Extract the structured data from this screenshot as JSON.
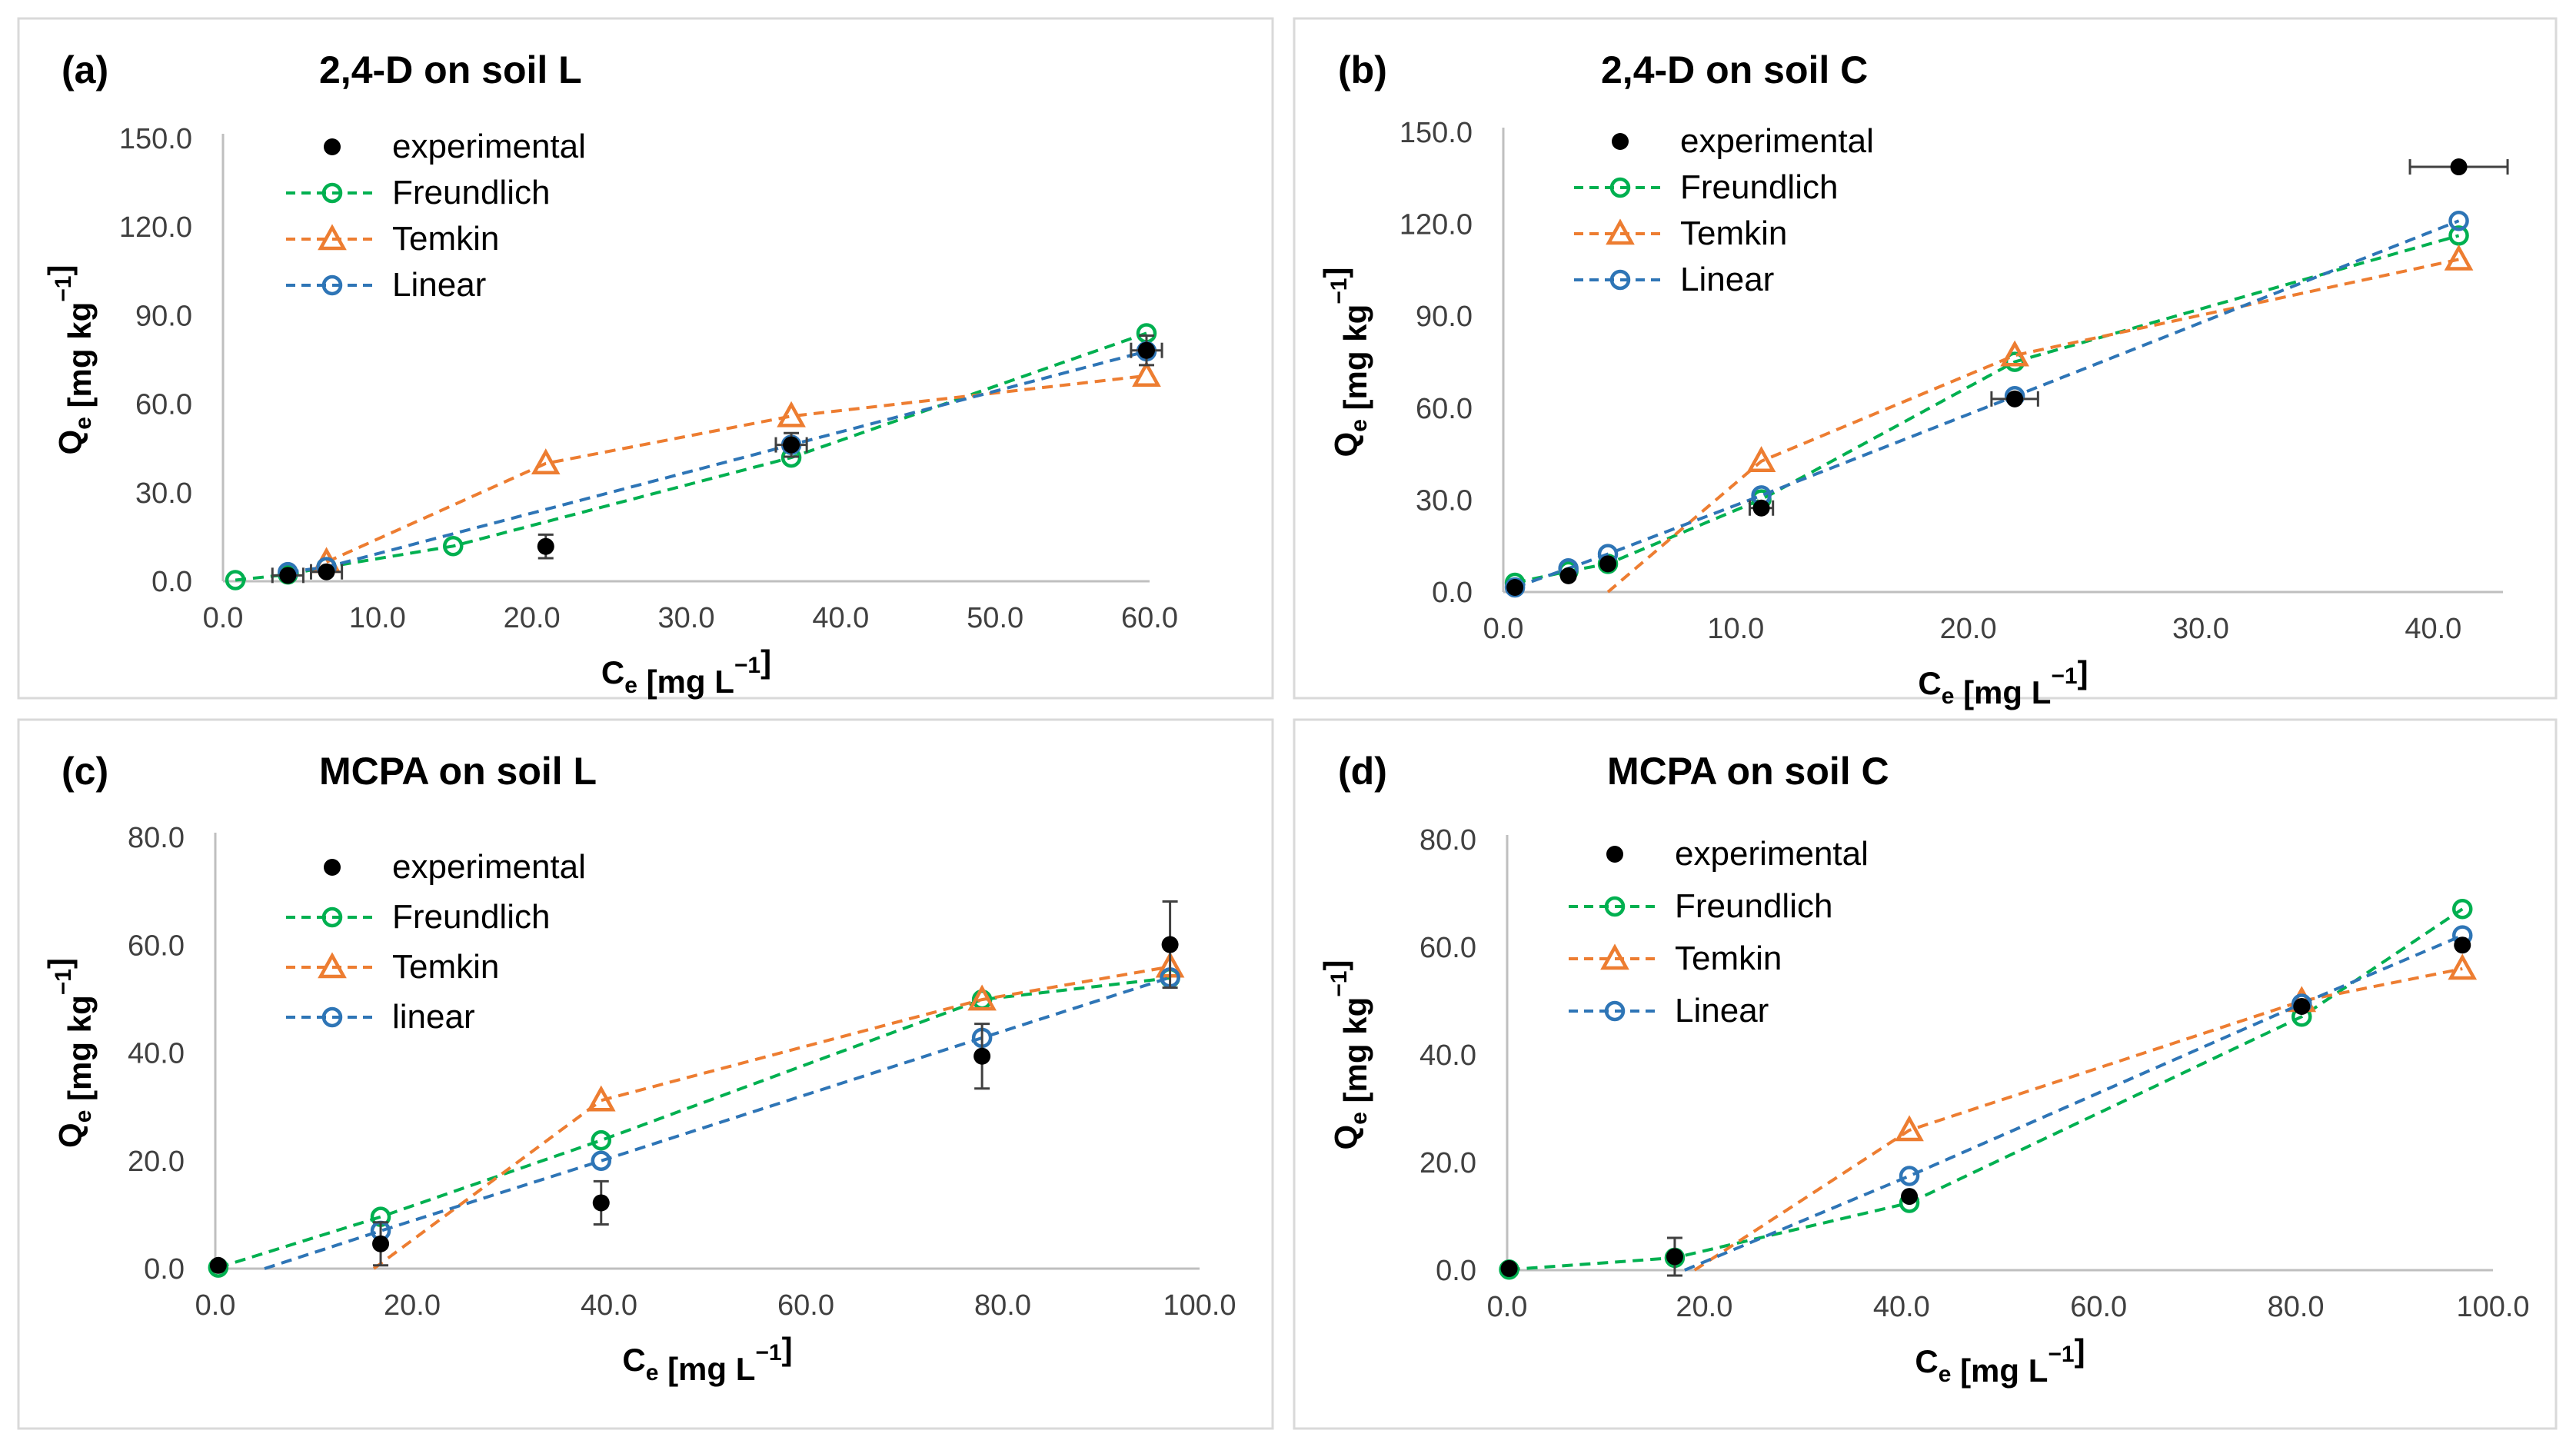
{
  "figure": {
    "panels": [
      {
        "letter": "(a)",
        "title": "2,4-D on soil L",
        "xlabel_main": "C",
        "xlabel_sub": "e",
        "xlabel_unit": " [mg L",
        "ylabel_main": "Q",
        "ylabel_sub": "e",
        "ylabel_unit": " [mg kg",
        "unit_exp": "−1",
        "legend": [
          "experimental",
          "Freundlich",
          "Temkin",
          "Linear"
        ]
      },
      {
        "letter": "(b)",
        "title": "2,4-D on soil C",
        "xlabel_main": "C",
        "xlabel_sub": "e",
        "xlabel_unit": " [mg L",
        "ylabel_main": "Q",
        "ylabel_sub": "e",
        "ylabel_unit": " [mg kg",
        "unit_exp": "−1",
        "legend": [
          "experimental",
          "Freundlich",
          "Temkin",
          "Linear"
        ]
      },
      {
        "letter": "(c)",
        "title": "MCPA on soil L",
        "xlabel_main": "C",
        "xlabel_sub": "e",
        "xlabel_unit": " [mg L",
        "ylabel_main": "Q",
        "ylabel_sub": "e",
        "ylabel_unit": " [mg kg",
        "unit_exp": "−1",
        "legend": [
          "experimental",
          "Freundlich",
          "Temkin",
          "linear"
        ]
      },
      {
        "letter": "(d)",
        "title": "MCPA on soil C",
        "xlabel_main": "C",
        "xlabel_sub": "e",
        "xlabel_unit": " [mg L",
        "ylabel_main": "Q",
        "ylabel_sub": "e",
        "ylabel_unit": " [mg kg",
        "unit_exp": "−1",
        "legend": [
          "experimental",
          "Freundlich",
          "Temkin",
          "Linear"
        ]
      }
    ]
  },
  "colors": {
    "experimental": "#000000",
    "freundlich": "#00b050",
    "temkin": "#ed7d31",
    "linear": "#2e75b6",
    "errorbar": "#404040"
  },
  "chart_data": [
    {
      "type": "scatter",
      "title": "2,4-D on soil L",
      "xlabel": "Ce [mg L−1]",
      "ylabel": "Qe [mg kg−1]",
      "xlim": [
        0,
        60
      ],
      "ylim": [
        0,
        150
      ],
      "xticks": [
        0,
        10,
        20,
        30,
        40,
        50,
        60
      ],
      "yticks": [
        0,
        30,
        60,
        90,
        120,
        150
      ],
      "tick_decimals": 1,
      "series": [
        {
          "name": "experimental",
          "x": [
            4.2,
            6.7,
            20.9,
            36.8,
            59.8
          ],
          "y": [
            2.0,
            3.2,
            11.8,
            46.2,
            78.2
          ],
          "xerr": [
            1.0,
            1.0,
            0,
            1.0,
            1.0
          ],
          "yerr": [
            0,
            0,
            4.0,
            4.0,
            5.0
          ]
        },
        {
          "name": "Freundlich",
          "x": [
            0.8,
            4.2,
            6.7,
            14.9,
            36.8,
            59.8
          ],
          "y": [
            0.4,
            2.3,
            4.8,
            11.9,
            41.9,
            84.0
          ]
        },
        {
          "name": "Temkin",
          "x": [
            6.7,
            20.9,
            36.8,
            59.8
          ],
          "y": [
            6.5,
            39.9,
            55.9,
            69.6
          ]
        },
        {
          "name": "Linear",
          "x": [
            4.2,
            6.7,
            36.8,
            59.8
          ],
          "y": [
            3.1,
            4.8,
            46.2,
            77.9
          ]
        }
      ]
    },
    {
      "type": "scatter",
      "title": "2,4-D on soil C",
      "xlabel": "Ce [mg L−1]",
      "ylabel": "Qe [mg kg−1]",
      "xlim": [
        0,
        43
      ],
      "ylim": [
        0,
        150
      ],
      "xticks": [
        0,
        10,
        20,
        30,
        40
      ],
      "yticks": [
        0,
        30,
        60,
        90,
        120,
        150
      ],
      "tick_decimals": 1,
      "series": [
        {
          "name": "experimental",
          "x": [
            0.5,
            2.8,
            4.5,
            11.1,
            22.0,
            41.1
          ],
          "y": [
            1.5,
            5.3,
            9.2,
            27.4,
            63.0,
            138.7
          ],
          "xerr": [
            0,
            0,
            0,
            0.5,
            1.0,
            2.1
          ],
          "yerr": [
            0,
            0,
            0,
            0,
            0,
            0
          ]
        },
        {
          "name": "Freundlich",
          "x": [
            0.5,
            2.8,
            4.5,
            11.1,
            22.0,
            41.1
          ],
          "y": [
            3.0,
            6.8,
            9.2,
            30.2,
            75.1,
            116.3
          ]
        },
        {
          "name": "Temkin",
          "x": [
            4.5,
            11.1,
            22.0,
            41.1
          ],
          "y": [
            0.0,
            42.7,
            77.2,
            108.5
          ]
        },
        {
          "name": "Linear",
          "x": [
            0.5,
            2.8,
            4.5,
            11.1,
            22.0,
            41.1
          ],
          "y": [
            1.5,
            7.7,
            12.4,
            31.5,
            63.9,
            121.1
          ]
        }
      ]
    },
    {
      "type": "scatter",
      "title": "MCPA on soil L",
      "xlabel": "Ce [mg L−1]",
      "ylabel": "Qe [mg kg−1]",
      "xlim": [
        0,
        100
      ],
      "ylim": [
        0,
        80
      ],
      "xticks": [
        0,
        20,
        40,
        60,
        80,
        100
      ],
      "yticks": [
        0,
        20,
        40,
        60,
        80
      ],
      "tick_decimals": 1,
      "series": [
        {
          "name": "experimental",
          "x": [
            0.3,
            16.8,
            39.2,
            77.9,
            97.0
          ],
          "y": [
            0.6,
            4.6,
            12.2,
            39.4,
            60.1
          ],
          "xerr": [
            0,
            0,
            0,
            0,
            0
          ],
          "yerr": [
            0,
            4.0,
            4.0,
            6.0,
            8.0
          ]
        },
        {
          "name": "Freundlich",
          "x": [
            0.3,
            16.8,
            39.2,
            77.9,
            97.0
          ],
          "y": [
            0.2,
            9.6,
            23.8,
            49.9,
            53.9
          ]
        },
        {
          "name": "Temkin",
          "x": [
            16.1,
            39.2,
            77.9,
            97.0
          ],
          "y": [
            0.0,
            31.2,
            49.9,
            56.0
          ]
        },
        {
          "name": "linear",
          "x": [
            5.0,
            16.8,
            39.2,
            77.9,
            97.0
          ],
          "y": [
            0.0,
            7.0,
            20.0,
            42.8,
            54.0
          ]
        }
      ]
    },
    {
      "type": "scatter",
      "title": "MCPA on soil C",
      "xlabel": "Ce [mg L−1]",
      "ylabel": "Qe [mg kg−1]",
      "xlim": [
        0,
        100
      ],
      "ylim": [
        0,
        80
      ],
      "xticks": [
        0,
        20,
        40,
        60,
        80,
        100
      ],
      "yticks": [
        0,
        20,
        40,
        60,
        80
      ],
      "tick_decimals": 1,
      "series": [
        {
          "name": "experimental",
          "x": [
            0.2,
            17.0,
            40.8,
            80.6,
            96.9
          ],
          "y": [
            0.3,
            2.5,
            13.7,
            49.0,
            60.4
          ],
          "xerr": [
            0,
            0,
            0,
            0,
            0
          ],
          "yerr": [
            0,
            3.5,
            0,
            0,
            0
          ]
        },
        {
          "name": "Freundlich",
          "x": [
            0.2,
            17.0,
            40.8,
            80.6,
            96.9
          ],
          "y": [
            0.1,
            2.3,
            12.5,
            47.1,
            67.1
          ]
        },
        {
          "name": "Temkin",
          "x": [
            19.0,
            40.8,
            80.6,
            96.9
          ],
          "y": [
            0.0,
            26.0,
            50.0,
            56.0
          ]
        },
        {
          "name": "Linear",
          "x": [
            18.0,
            40.8,
            80.6,
            96.9
          ],
          "y": [
            0.0,
            17.5,
            49.5,
            62.2
          ]
        }
      ]
    }
  ]
}
